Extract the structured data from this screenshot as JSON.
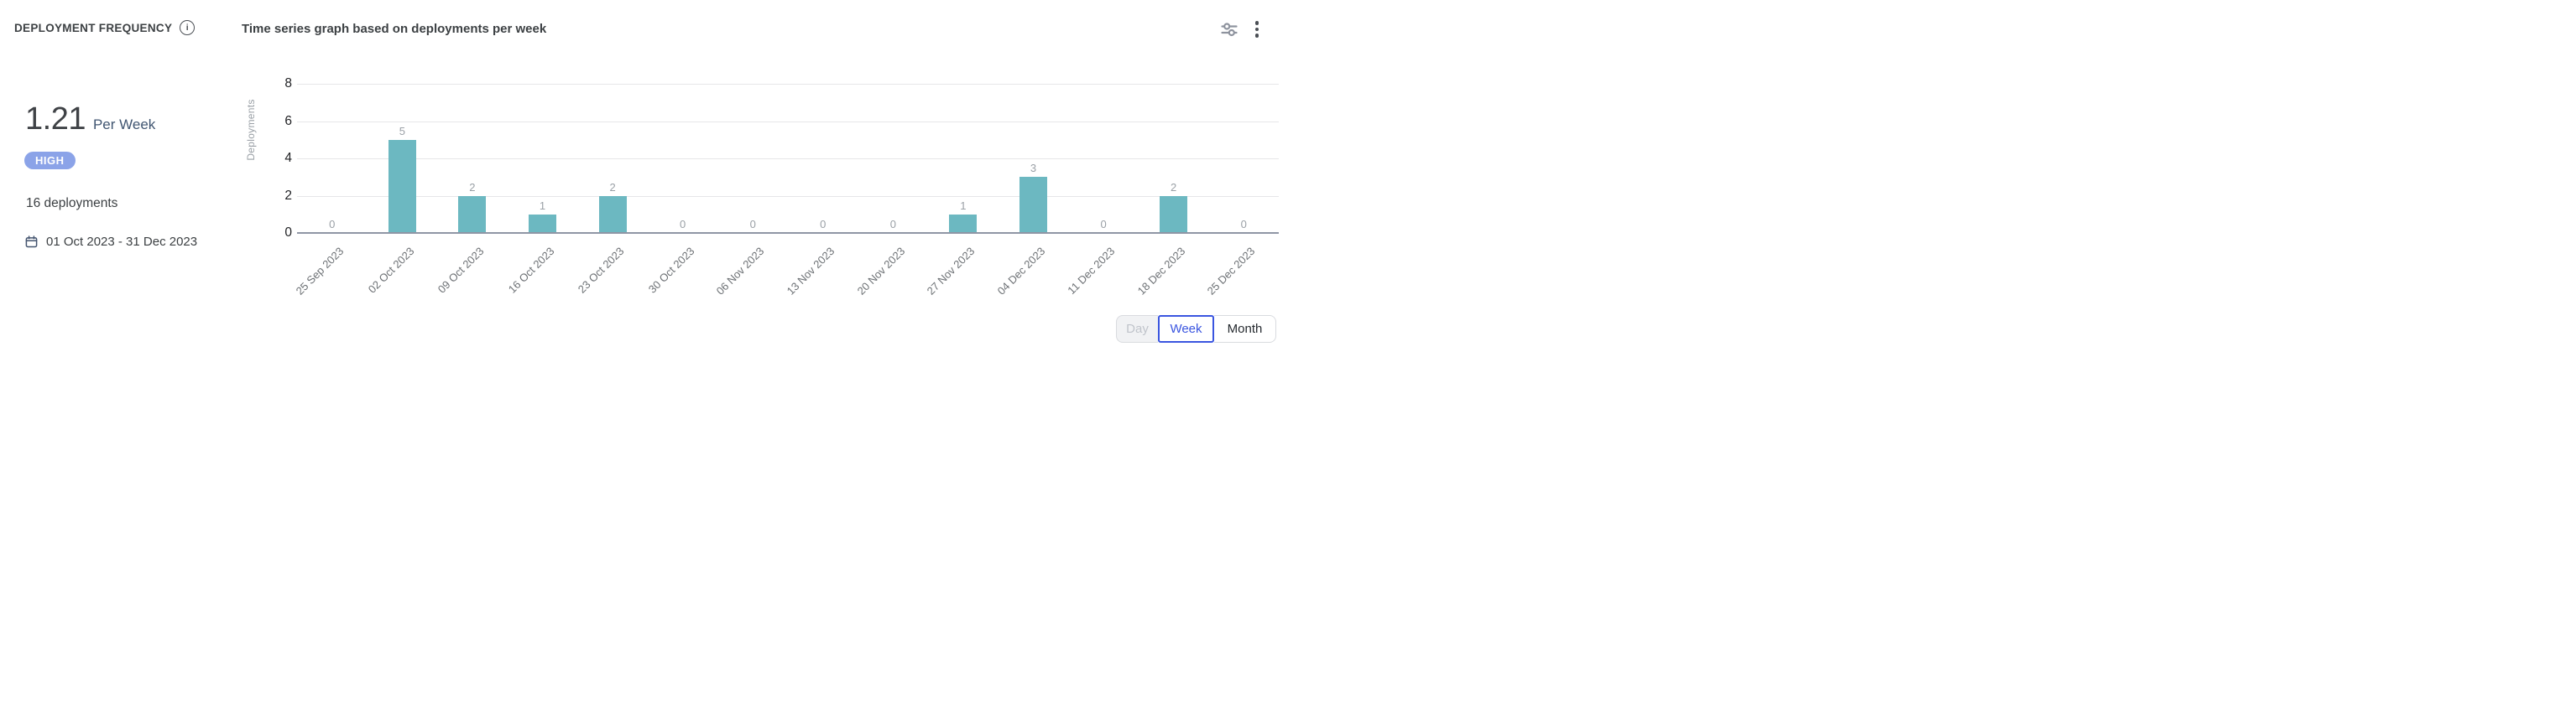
{
  "header": {
    "title": "DEPLOYMENT FREQUENCY",
    "chart_title": "Time series graph based on deployments per week"
  },
  "icons": {
    "info": "i-in-circle",
    "filter": "sliders-horizontal",
    "menu": "kebab-vertical-3-dots",
    "calendar": "calendar-outline"
  },
  "metric": {
    "value": "1.21",
    "unit": "Per Week",
    "badge": "HIGH",
    "deployments_total": "16 deployments",
    "date_range": "01 Oct 2023 - 31 Dec 2023"
  },
  "chart_data": {
    "type": "bar",
    "title": "Time series graph based on deployments per week",
    "ylabel": "Deployments",
    "xlabel": "",
    "categories": [
      "25 Sep 2023",
      "02 Oct 2023",
      "09 Oct 2023",
      "16 Oct 2023",
      "23 Oct 2023",
      "30 Oct 2023",
      "06 Nov 2023",
      "13 Nov 2023",
      "20 Nov 2023",
      "27 Nov 2023",
      "04 Dec 2023",
      "11 Dec 2023",
      "18 Dec 2023",
      "25 Dec 2023"
    ],
    "values": [
      0,
      5,
      2,
      1,
      2,
      0,
      0,
      0,
      0,
      1,
      3,
      0,
      2,
      0
    ],
    "ylim": [
      0,
      8
    ],
    "yticks": [
      0,
      2,
      4,
      6,
      8
    ],
    "grid": true,
    "value_labels": true,
    "bar_color": "#6cb8c1",
    "legend_position": "none"
  },
  "toggle": {
    "options": [
      {
        "label": "Day",
        "state": "disabled"
      },
      {
        "label": "Week",
        "state": "selected"
      },
      {
        "label": "Month",
        "state": "enabled"
      }
    ]
  },
  "colors": {
    "bar_teal": "#6cb8c1",
    "badge_blue": "#8ba3e8",
    "selected_blue": "#3a55e0",
    "unit_navy": "#405571",
    "text_dark": "#3c4043",
    "value_label_gray": "#9aa0a6",
    "xaxis_label_gray": "#6d7175",
    "baseline_gray": "#8f96a5",
    "gridline_gray": "#e6e6e8"
  }
}
